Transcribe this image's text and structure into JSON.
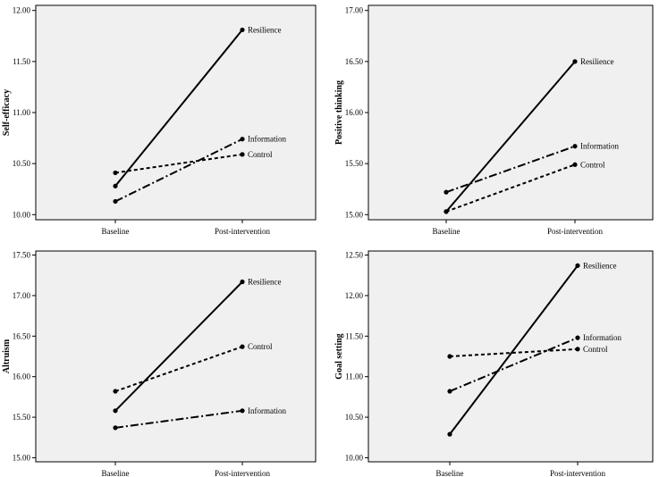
{
  "chart_data": [
    {
      "type": "line",
      "ylabel": "Self-efficacy",
      "categories": [
        "Baseline",
        "Post-intervention"
      ],
      "ylim": [
        9.95,
        12.05
      ],
      "yticks": [
        "10.00",
        "10.50",
        "11.00",
        "11.50",
        "12.00"
      ],
      "series": [
        {
          "name": "Resilience",
          "values": [
            10.28,
            11.81
          ],
          "style": "solid"
        },
        {
          "name": "Information",
          "values": [
            10.13,
            10.74
          ],
          "style": "dashdot"
        },
        {
          "name": "Control",
          "values": [
            10.41,
            10.59
          ],
          "style": "dashed"
        }
      ]
    },
    {
      "type": "line",
      "ylabel": "Positive thinking",
      "categories": [
        "Baseline",
        "Post-intervention"
      ],
      "ylim": [
        14.95,
        17.05
      ],
      "yticks": [
        "15.00",
        "15.50",
        "16.00",
        "16.50",
        "17.00"
      ],
      "series": [
        {
          "name": "Resilience",
          "values": [
            15.03,
            16.5
          ],
          "style": "solid"
        },
        {
          "name": "Information",
          "values": [
            15.22,
            15.67
          ],
          "style": "dashdot"
        },
        {
          "name": "Control",
          "values": [
            15.03,
            15.49
          ],
          "style": "dashed"
        }
      ]
    },
    {
      "type": "line",
      "ylabel": "Altruism",
      "categories": [
        "Baseline",
        "Post-intervention"
      ],
      "ylim": [
        14.95,
        17.55
      ],
      "yticks": [
        "15.00",
        "15.50",
        "16.00",
        "16.50",
        "17.00",
        "17.50"
      ],
      "series": [
        {
          "name": "Resilience",
          "values": [
            15.58,
            17.17
          ],
          "style": "solid"
        },
        {
          "name": "Control",
          "values": [
            15.82,
            16.37
          ],
          "style": "dashed"
        },
        {
          "name": "Information",
          "values": [
            15.37,
            15.58
          ],
          "style": "dashdot"
        }
      ]
    },
    {
      "type": "line",
      "ylabel": "Goal setting",
      "categories": [
        "Baseline",
        "Post-intervention"
      ],
      "ylim": [
        9.95,
        12.55
      ],
      "yticks": [
        "10.00",
        "10.50",
        "11.00",
        "11.50",
        "12.00",
        "12.50"
      ],
      "series": [
        {
          "name": "Resilience",
          "values": [
            10.29,
            12.37
          ],
          "style": "solid"
        },
        {
          "name": "Information",
          "values": [
            10.82,
            11.48
          ],
          "style": "dashdot"
        },
        {
          "name": "Control",
          "values": [
            11.25,
            11.34
          ],
          "style": "dashed"
        }
      ]
    }
  ],
  "colors": {
    "plot_bg": "#f0f0f0",
    "line": "#000000"
  }
}
